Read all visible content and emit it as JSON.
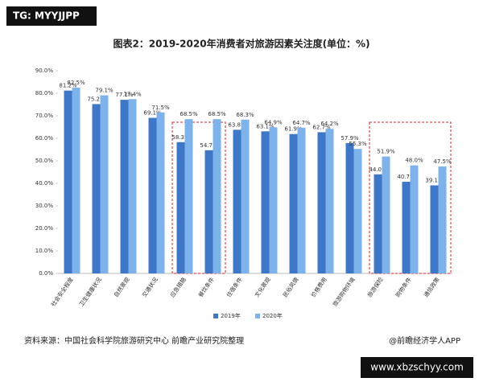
{
  "badge_top": "TG: MYYJJPP",
  "source": "资料来源：中国社会科学院旅游研究中心 前瞻产业研究院整理",
  "credit": "@前瞻经济学人APP",
  "badge_bottom": "www.xbzschyy.com",
  "chart_data": {
    "type": "bar",
    "title": "图表2：2019-2020年消费者对旅游因素关注度(单位：%)",
    "categories": [
      "社会安全程度",
      "卫生健康状况",
      "自然景观",
      "交通状况",
      "应急措施",
      "餐饮条件",
      "住宿条件",
      "文化景观",
      "民俗风情",
      "价格费用",
      "旅游购物环境",
      "旅游保险",
      "购物条件",
      "通信政策"
    ],
    "series": [
      {
        "name": "2019年",
        "color": "#3f77c8",
        "values": [
          81.2,
          75.2,
          77.1,
          69.1,
          58.3,
          54.7,
          63.8,
          63.1,
          61.9,
          62.7,
          57.9,
          44.0,
          40.7,
          39.1
        ],
        "value_labels": [
          "81.2%",
          "75.2%",
          "77.1%",
          "69.1%",
          "58.3%",
          "54.7%",
          "63.8%",
          "63.1%",
          "61.9%",
          "62.7%",
          "57.9%",
          "44.0%",
          "40.7%",
          "39.1%"
        ]
      },
      {
        "name": "2020年",
        "color": "#7db3ea",
        "values": [
          82.5,
          79.1,
          77.4,
          71.5,
          68.5,
          68.5,
          68.3,
          64.9,
          64.7,
          64.2,
          55.3,
          51.9,
          48.0,
          47.5
        ],
        "value_labels": [
          "82.5%",
          "79.1%",
          "77.4%",
          "71.5%",
          "68.5%",
          "68.5%",
          "68.3%",
          "64.9%",
          "64.7%",
          "64.2%",
          "55.3%",
          "51.9%",
          "48.0%",
          "47.5%"
        ]
      }
    ],
    "ylim": [
      0,
      90
    ],
    "yticks": [
      {
        "value": 0,
        "label": "0.0%"
      },
      {
        "value": 10,
        "label": "10.0%"
      },
      {
        "value": 20,
        "label": "20.0%"
      },
      {
        "value": 30,
        "label": "30.0%"
      },
      {
        "value": 40,
        "label": "40.0%"
      },
      {
        "value": 50,
        "label": "50.0%"
      },
      {
        "value": 60,
        "label": "60.0%"
      },
      {
        "value": 70,
        "label": "70.0%"
      },
      {
        "value": 80,
        "label": "80.0%"
      },
      {
        "value": 90,
        "label": "90.0%"
      }
    ],
    "grid": false,
    "legend": "bottom",
    "highlights": [
      [
        4,
        5
      ],
      [
        11,
        13
      ]
    ]
  }
}
